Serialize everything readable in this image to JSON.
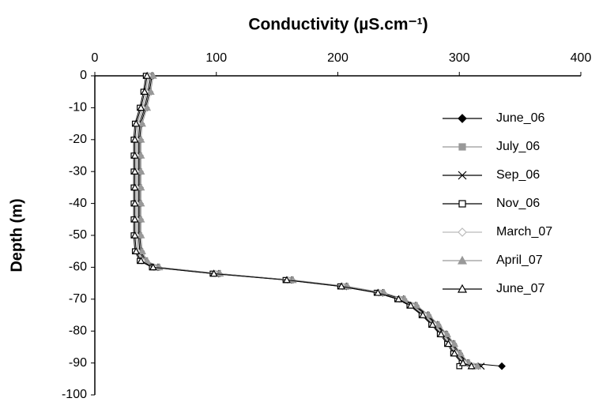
{
  "chart_data": {
    "type": "scatter",
    "title": "Conductivity (µS.cm⁻¹)",
    "y_label": "Depth (m)",
    "xlim": [
      0,
      400
    ],
    "xticks": [
      0,
      100,
      200,
      300,
      400
    ],
    "ylim": [
      -100,
      0
    ],
    "yticks": [
      0,
      -10,
      -20,
      -30,
      -40,
      -50,
      -60,
      -70,
      -80,
      -90,
      -100
    ],
    "legend": "right",
    "y": [
      0,
      -5,
      -10,
      -15,
      -20,
      -25,
      -30,
      -35,
      -40,
      -45,
      -50,
      -55,
      -58,
      -60,
      -62,
      -64,
      -66,
      -68,
      -70,
      -72,
      -75,
      -78,
      -81,
      -84,
      -87,
      -90,
      -91
    ],
    "series": [
      {
        "name": "June_06",
        "color": "#000000",
        "marker": "diamond",
        "filled": true,
        "values": [
          47,
          45,
          42,
          38,
          37,
          37,
          37,
          37,
          37,
          37,
          37,
          38,
          42,
          52,
          102,
          162,
          207,
          237,
          254,
          264,
          274,
          282,
          289,
          295,
          300,
          307,
          335
        ]
      },
      {
        "name": "July_06",
        "color": "#999999",
        "marker": "square",
        "filled": true,
        "values": [
          45,
          43,
          40,
          36,
          35,
          35,
          35,
          35,
          35,
          35,
          35,
          36,
          40,
          50,
          100,
          160,
          205,
          235,
          252,
          262,
          272,
          280,
          287,
          293,
          298,
          305,
          312
        ]
      },
      {
        "name": "Sep_06",
        "color": "#000000",
        "marker": "x",
        "filled": false,
        "values": [
          46,
          44,
          41,
          37,
          36,
          36,
          36,
          36,
          36,
          36,
          36,
          37,
          41,
          51,
          101,
          161,
          206,
          236,
          253,
          263,
          273,
          281,
          288,
          294,
          299,
          306,
          318
        ]
      },
      {
        "name": "Nov_06",
        "color": "#000000",
        "marker": "square",
        "filled": false,
        "values": [
          42,
          40,
          37,
          33,
          32,
          32,
          32,
          32,
          32,
          32,
          32,
          33,
          37,
          47,
          97,
          157,
          202,
          232,
          249,
          259,
          269,
          277,
          284,
          290,
          295,
          302,
          300
        ]
      },
      {
        "name": "March_07",
        "color": "#bbbbbb",
        "marker": "diamond",
        "filled": false,
        "values": [
          44,
          42,
          39,
          35,
          34,
          34,
          34,
          34,
          34,
          34,
          34,
          35,
          39,
          49,
          99,
          159,
          204,
          234,
          251,
          261,
          271,
          279,
          286,
          292,
          297,
          304,
          311
        ]
      },
      {
        "name": "April_07",
        "color": "#999999",
        "marker": "triangle",
        "filled": true,
        "values": [
          48,
          46,
          43,
          39,
          38,
          38,
          38,
          38,
          38,
          38,
          38,
          39,
          43,
          53,
          103,
          163,
          208,
          238,
          255,
          265,
          275,
          283,
          290,
          296,
          301,
          308,
          315
        ]
      },
      {
        "name": "June_07",
        "color": "#000000",
        "marker": "triangle",
        "filled": false,
        "values": [
          43,
          41,
          38,
          34,
          33,
          33,
          33,
          33,
          33,
          33,
          33,
          34,
          38,
          48,
          98,
          158,
          203,
          233,
          250,
          260,
          270,
          278,
          285,
          291,
          296,
          303,
          310
        ]
      }
    ]
  }
}
